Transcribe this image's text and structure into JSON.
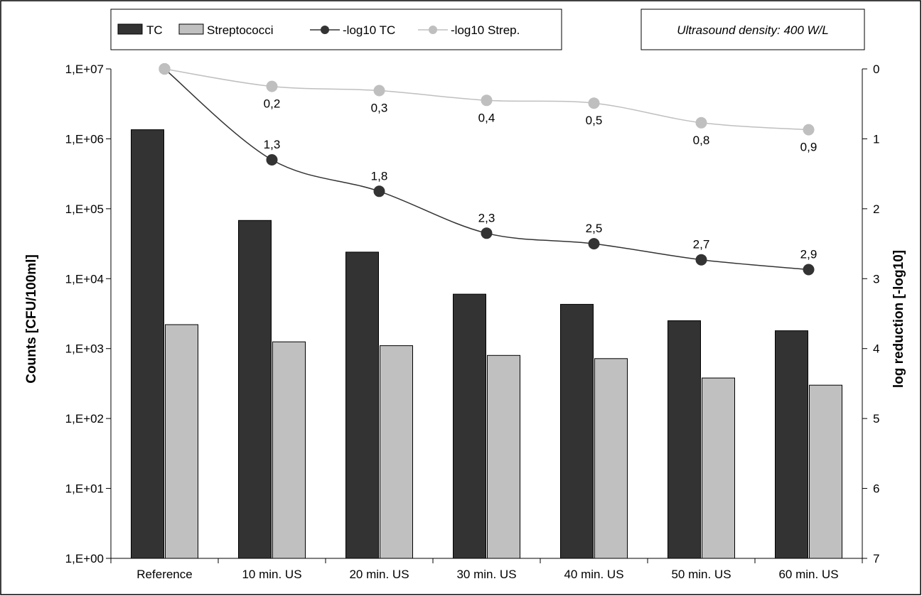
{
  "chart_data": {
    "type": "bar",
    "categories": [
      "Reference",
      "10 min. US",
      "20 min. US",
      "30 min. US",
      "40 min. US",
      "50 min. US",
      "60 min. US"
    ],
    "bar_series": [
      {
        "name": "TC",
        "color": "#333333",
        "values": [
          1350000,
          68000,
          24000,
          6000,
          4300,
          2500,
          1800
        ]
      },
      {
        "name": "Streptococci",
        "color": "#c0c0c0",
        "values": [
          2200,
          1250,
          1100,
          800,
          720,
          380,
          300
        ]
      }
    ],
    "line_series": [
      {
        "name": "-log10 TC",
        "color": "#333333",
        "values": [
          0,
          1.3,
          1.75,
          2.35,
          2.5,
          2.73,
          2.87
        ],
        "labels": [
          "",
          "1,3",
          "1,8",
          "2,3",
          "2,5",
          "2,7",
          "2,9"
        ]
      },
      {
        "name": "-log10 Strep.",
        "color": "#bfbfbf",
        "values": [
          0,
          0.25,
          0.31,
          0.45,
          0.49,
          0.77,
          0.87
        ],
        "labels": [
          "",
          "0,2",
          "0,3",
          "0,4",
          "0,5",
          "0,8",
          "0,9"
        ]
      }
    ],
    "y_left": {
      "label": "Counts [CFU/100ml]",
      "scale": "log",
      "range": [
        1,
        10000000
      ],
      "ticks": [
        1,
        10,
        100,
        1000,
        10000,
        100000,
        1000000,
        10000000
      ],
      "tick_labels": [
        "1,E+00",
        "1,E+01",
        "1,E+02",
        "1,E+03",
        "1,E+04",
        "1,E+05",
        "1,E+06",
        "1,E+07"
      ]
    },
    "y_right": {
      "label": "log reduction [-log10]",
      "inverted": true,
      "range": [
        0,
        7
      ],
      "ticks": [
        0,
        1,
        2,
        3,
        4,
        5,
        6,
        7
      ],
      "tick_labels": [
        "0",
        "1",
        "2",
        "3",
        "4",
        "5",
        "6",
        "7"
      ]
    },
    "annotation": "Ultrasound density: 400 W/L",
    "legend_position": "top-left",
    "grid": false
  }
}
